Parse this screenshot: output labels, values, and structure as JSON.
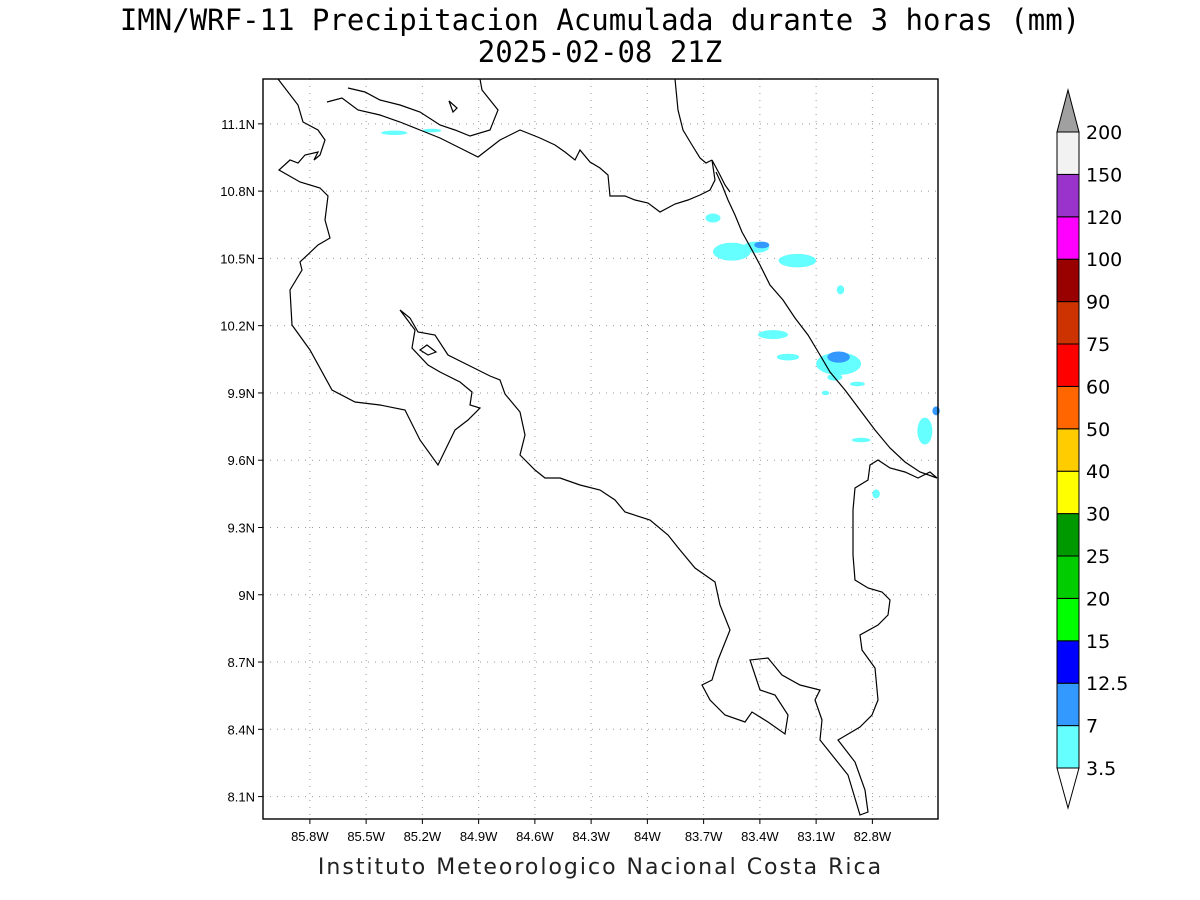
{
  "title_line1": "IMN/WRF-11 Precipitacion Acumulada durante 3 horas (mm)",
  "title_line2": "2025-02-08 21Z",
  "footer": "Instituto Meteorologico Nacional Costa Rica",
  "map": {
    "lon_range": [
      -86.05,
      -82.45
    ],
    "lat_range": [
      8.0,
      11.3
    ],
    "grid": "dotted",
    "lat_ticks": [
      {
        "value": 11.1,
        "label": "11.1N"
      },
      {
        "value": 10.8,
        "label": "10.8N"
      },
      {
        "value": 10.5,
        "label": "10.5N"
      },
      {
        "value": 10.2,
        "label": "10.2N"
      },
      {
        "value": 9.9,
        "label": "9.9N"
      },
      {
        "value": 9.6,
        "label": "9.6N"
      },
      {
        "value": 9.3,
        "label": "9.3N"
      },
      {
        "value": 9.0,
        "label": "9N"
      },
      {
        "value": 8.7,
        "label": "8.7N"
      },
      {
        "value": 8.4,
        "label": "8.4N"
      },
      {
        "value": 8.1,
        "label": "8.1N"
      }
    ],
    "lon_ticks": [
      {
        "value": -85.8,
        "label": "85.8W"
      },
      {
        "value": -85.5,
        "label": "85.5W"
      },
      {
        "value": -85.2,
        "label": "85.2W"
      },
      {
        "value": -84.9,
        "label": "84.9W"
      },
      {
        "value": -84.6,
        "label": "84.6W"
      },
      {
        "value": -84.3,
        "label": "84.3W"
      },
      {
        "value": -84.0,
        "label": "84W"
      },
      {
        "value": -83.7,
        "label": "83.7W"
      },
      {
        "value": -83.4,
        "label": "83.4W"
      },
      {
        "value": -83.1,
        "label": "83.1W"
      },
      {
        "value": -82.8,
        "label": "82.8W"
      }
    ],
    "precip_areas": [
      {
        "lon": -85.35,
        "lat": 11.06,
        "rx": 0.07,
        "ry": 0.01,
        "color": "#66ffff"
      },
      {
        "lon": -85.15,
        "lat": 11.07,
        "rx": 0.05,
        "ry": 0.008,
        "color": "#66ffff"
      },
      {
        "lon": -83.65,
        "lat": 10.68,
        "rx": 0.04,
        "ry": 0.02,
        "color": "#66ffff"
      },
      {
        "lon": -83.55,
        "lat": 10.53,
        "rx": 0.1,
        "ry": 0.04,
        "color": "#66ffff"
      },
      {
        "lon": -83.42,
        "lat": 10.55,
        "rx": 0.07,
        "ry": 0.025,
        "color": "#66ffff"
      },
      {
        "lon": -83.39,
        "lat": 10.56,
        "rx": 0.04,
        "ry": 0.015,
        "color": "#3399ff"
      },
      {
        "lon": -83.2,
        "lat": 10.49,
        "rx": 0.1,
        "ry": 0.03,
        "color": "#66ffff"
      },
      {
        "lon": -82.97,
        "lat": 10.36,
        "rx": 0.02,
        "ry": 0.02,
        "color": "#66ffff"
      },
      {
        "lon": -83.33,
        "lat": 10.16,
        "rx": 0.08,
        "ry": 0.02,
        "color": "#66ffff"
      },
      {
        "lon": -83.25,
        "lat": 10.06,
        "rx": 0.06,
        "ry": 0.015,
        "color": "#66ffff"
      },
      {
        "lon": -82.98,
        "lat": 10.03,
        "rx": 0.12,
        "ry": 0.05,
        "color": "#66ffff"
      },
      {
        "lon": -82.98,
        "lat": 10.06,
        "rx": 0.06,
        "ry": 0.025,
        "color": "#3399ff"
      },
      {
        "lon": -83.0,
        "lat": 9.97,
        "rx": 0.04,
        "ry": 0.015,
        "color": "#66ffff"
      },
      {
        "lon": -82.88,
        "lat": 9.94,
        "rx": 0.04,
        "ry": 0.01,
        "color": "#66ffff"
      },
      {
        "lon": -83.05,
        "lat": 9.9,
        "rx": 0.02,
        "ry": 0.01,
        "color": "#66ffff"
      },
      {
        "lon": -82.86,
        "lat": 9.69,
        "rx": 0.05,
        "ry": 0.01,
        "color": "#66ffff"
      },
      {
        "lon": -82.52,
        "lat": 9.73,
        "rx": 0.04,
        "ry": 0.06,
        "color": "#66ffff"
      },
      {
        "lon": -82.46,
        "lat": 9.82,
        "rx": 0.02,
        "ry": 0.02,
        "color": "#3399ff"
      },
      {
        "lon": -82.78,
        "lat": 9.45,
        "rx": 0.02,
        "ry": 0.02,
        "color": "#66ffff"
      }
    ]
  },
  "colorbar": {
    "levels": [
      {
        "label": "3.5",
        "color": "#66ffff"
      },
      {
        "label": "7",
        "color": "#3399ff"
      },
      {
        "label": "12.5",
        "color": "#0000ff"
      },
      {
        "label": "15",
        "color": "#00ff00"
      },
      {
        "label": "20",
        "color": "#00cc00"
      },
      {
        "label": "25",
        "color": "#009900"
      },
      {
        "label": "30",
        "color": "#ffff00"
      },
      {
        "label": "40",
        "color": "#ffcc00"
      },
      {
        "label": "50",
        "color": "#ff6600"
      },
      {
        "label": "60",
        "color": "#ff0000"
      },
      {
        "label": "75",
        "color": "#cc3300"
      },
      {
        "label": "90",
        "color": "#990000"
      },
      {
        "label": "100",
        "color": "#ff00ff"
      },
      {
        "label": "120",
        "color": "#9933cc"
      },
      {
        "label": "150",
        "color": "#f2f2f2"
      },
      {
        "label": "200",
        "color": "#a0a0a0"
      }
    ],
    "low_end_color": "#ffffff"
  }
}
